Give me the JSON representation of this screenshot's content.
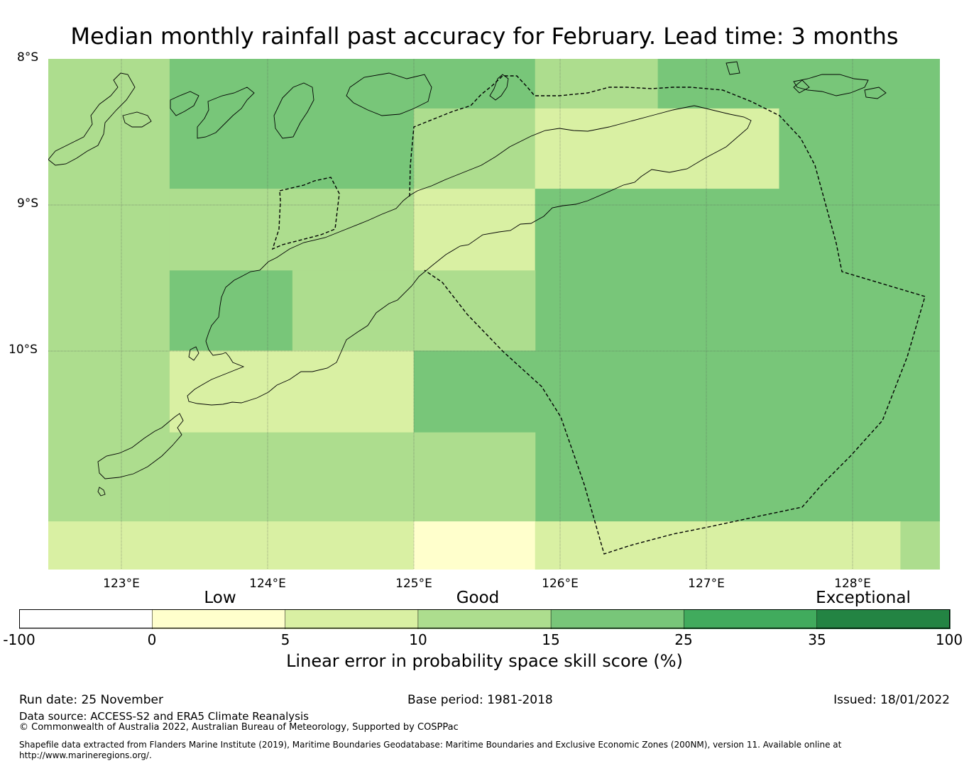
{
  "title": "Median monthly rainfall past accuracy for February. Lead time: 3 months",
  "map": {
    "lat_labels": [
      "8°S",
      "9°S",
      "10°S"
    ],
    "lon_labels": [
      "123°E",
      "124°E",
      "125°E",
      "126°E",
      "127°E",
      "128°E"
    ],
    "extent": {
      "lon_min": 122.5,
      "lon_max": 128.6,
      "lat_top": -8.0,
      "lat_bottom": -11.5
    },
    "grid_cells": [
      {
        "lon0": 122.5,
        "lon1": 123.33,
        "lat0": -8.0,
        "lat1": -11.17,
        "cls": 2
      },
      {
        "lon0": 123.33,
        "lon1": 125.0,
        "lat0": -8.0,
        "lat1": -8.89,
        "cls": 3
      },
      {
        "lon0": 125.0,
        "lon1": 125.83,
        "lat0": -8.0,
        "lat1": -8.34,
        "cls": 3
      },
      {
        "lon0": 125.0,
        "lon1": 125.83,
        "lat0": -8.34,
        "lat1": -8.89,
        "cls": 2
      },
      {
        "lon0": 125.83,
        "lon1": 126.67,
        "lat0": -8.0,
        "lat1": -8.34,
        "cls": 2
      },
      {
        "lon0": 126.67,
        "lon1": 128.6,
        "lat0": -8.0,
        "lat1": -8.34,
        "cls": 3
      },
      {
        "lon0": 125.83,
        "lon1": 127.5,
        "lat0": -8.34,
        "lat1": -8.89,
        "cls": 1
      },
      {
        "lon0": 127.5,
        "lon1": 128.6,
        "lat0": -8.34,
        "lat1": -8.89,
        "cls": 3
      },
      {
        "lon0": 123.33,
        "lon1": 125.0,
        "lat0": -8.89,
        "lat1": -9.45,
        "cls": 2
      },
      {
        "lon0": 125.0,
        "lon1": 125.83,
        "lat0": -8.89,
        "lat1": -9.45,
        "cls": 1
      },
      {
        "lon0": 125.83,
        "lon1": 128.6,
        "lat0": -8.89,
        "lat1": -11.17,
        "cls": 3
      },
      {
        "lon0": 123.33,
        "lon1": 124.17,
        "lat0": -9.45,
        "lat1": -10.0,
        "cls": 3
      },
      {
        "lon0": 124.17,
        "lon1": 125.0,
        "lat0": -9.45,
        "lat1": -10.0,
        "cls": 2
      },
      {
        "lon0": 125.0,
        "lon1": 125.83,
        "lat0": -9.45,
        "lat1": -10.0,
        "cls": 2
      },
      {
        "lon0": 123.33,
        "lon1": 125.0,
        "lat0": -10.0,
        "lat1": -10.56,
        "cls": 1
      },
      {
        "lon0": 125.0,
        "lon1": 125.83,
        "lat0": -10.0,
        "lat1": -10.56,
        "cls": 3
      },
      {
        "lon0": 123.33,
        "lon1": 125.0,
        "lat0": -10.56,
        "lat1": -11.17,
        "cls": 2
      },
      {
        "lon0": 125.0,
        "lon1": 125.83,
        "lat0": -10.56,
        "lat1": -11.17,
        "cls": 2
      },
      {
        "lon0": 122.5,
        "lon1": 125.0,
        "lat0": -11.17,
        "lat1": -11.5,
        "cls": 1
      },
      {
        "lon0": 125.0,
        "lon1": 125.83,
        "lat0": -11.17,
        "lat1": -11.5,
        "cls": 0
      },
      {
        "lon0": 125.83,
        "lon1": 128.33,
        "lat0": -11.17,
        "lat1": -11.5,
        "cls": 1
      },
      {
        "lon0": 128.33,
        "lon1": 128.6,
        "lat0": -11.17,
        "lat1": -11.5,
        "cls": 2
      }
    ]
  },
  "legend": {
    "categories": [
      "Low",
      "Good",
      "Exceptional"
    ],
    "ticks": [
      "-100",
      "0",
      "5",
      "10",
      "15",
      "25",
      "35",
      "100"
    ],
    "colors": [
      "#ffffff",
      "#ffffcc",
      "#d9f0a3",
      "#addd8e",
      "#78c679",
      "#41ab5d",
      "#238443"
    ],
    "label": "Linear error in probability space skill score (%)"
  },
  "footer": {
    "run_date": "Run date: 25 November",
    "base_period": "Base period: 1981-2018",
    "issued": "Issued: 18/01/2022",
    "data_source": "Data source: ACCESS-S2 and ERA5 Climate Reanalysis",
    "copyright": "© Commonwealth of Australia 2022, Australian Bureau of Meteorology, Supported by COSPPac",
    "shapefile_line1": "Shapefile data extracted from Flanders Marine Institute (2019), Maritime Boundaries Geodatabase: Maritime Boundaries and Exclusive Economic Zones (200NM), version 11. Available online at",
    "shapefile_line2": "http://www.marineregions.org/."
  }
}
